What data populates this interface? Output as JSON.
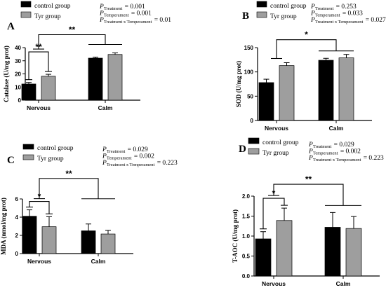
{
  "colors": {
    "control": "#000000",
    "tyr": "#9e9e9e",
    "axis": "#000000"
  },
  "chart_data": [
    {
      "type": "bar",
      "panel_label": "A",
      "categories": [
        "Nervous",
        "Calm"
      ],
      "ylabel": "Catalase (U/mg prot)",
      "ylim": [
        0,
        40
      ],
      "yticks": [
        0,
        10,
        20,
        30,
        40
      ],
      "series": [
        {
          "name": "control group",
          "values": [
            12.3,
            32.0
          ],
          "errors": [
            1.2,
            0.8
          ]
        },
        {
          "name": "Tyr group",
          "values": [
            18.2,
            34.8
          ],
          "errors": [
            1.5,
            1.2
          ]
        }
      ],
      "stats": [
        {
          "label": "Treatment",
          "value": "= 0.001"
        },
        {
          "label": "Temperament",
          "value": "= 0.001"
        },
        {
          "label": "Treatment x Temperament",
          "value": "= 0.01"
        }
      ],
      "brackets": [
        {
          "kind": "within",
          "category": 0,
          "text": "**"
        },
        {
          "kind": "between",
          "text": "**"
        }
      ]
    },
    {
      "type": "bar",
      "panel_label": "B",
      "categories": [
        "Nervous",
        "Calm"
      ],
      "ylabel": "SOD (U/mg prot)",
      "ylim": [
        0,
        150
      ],
      "yticks": [
        0,
        50,
        100,
        150
      ],
      "series": [
        {
          "name": "control group",
          "values": [
            78,
            124
          ],
          "errors": [
            7,
            4
          ]
        },
        {
          "name": "Tyr group",
          "values": [
            113,
            129
          ],
          "errors": [
            6,
            7
          ]
        }
      ],
      "stats": [
        {
          "label": "Treatment",
          "value": "= 0.253"
        },
        {
          "label": "Temperament",
          "value": "= 0.033"
        },
        {
          "label": "Treatment x Temperament",
          "value": "= 0.027"
        }
      ],
      "brackets": [
        {
          "kind": "between",
          "text": "*"
        }
      ]
    },
    {
      "type": "bar",
      "panel_label": "C",
      "categories": [
        "Nervous",
        "Calm"
      ],
      "ylabel": "MDA (nmol/mg prot)",
      "ylim": [
        0,
        6
      ],
      "yticks": [
        0,
        2,
        4,
        6
      ],
      "series": [
        {
          "name": "control group",
          "values": [
            4.1,
            2.5
          ],
          "errors": [
            0.7,
            0.75
          ]
        },
        {
          "name": "Tyr group",
          "values": [
            2.95,
            2.15
          ],
          "errors": [
            1.1,
            0.4
          ]
        }
      ],
      "stats": [
        {
          "label": "Treatment",
          "value": "= 0.029"
        },
        {
          "label": "Temperament",
          "value": "= 0.002"
        },
        {
          "label": "Treatment x Temperament",
          "value": "= 0.223"
        }
      ],
      "brackets": [
        {
          "kind": "within",
          "category": 0,
          "text": "*"
        },
        {
          "kind": "between",
          "text": "**"
        }
      ]
    },
    {
      "type": "bar",
      "panel_label": "D",
      "categories": [
        "Nervous",
        "Calm"
      ],
      "ylabel": "T-AOC (U/mg prot)",
      "ylim": [
        0,
        2.0
      ],
      "yticks": [
        0.0,
        0.5,
        1.0,
        1.5,
        2.0
      ],
      "tick_decimals": 1,
      "series": [
        {
          "name": "control group",
          "values": [
            0.93,
            1.22
          ],
          "errors": [
            0.18,
            0.37
          ]
        },
        {
          "name": "Tyr group",
          "values": [
            1.39,
            1.19
          ],
          "errors": [
            0.31,
            0.3
          ]
        }
      ],
      "stats": [
        {
          "label": "Treatment",
          "value": "= 0.029"
        },
        {
          "label": "Temperament",
          "value": "= 0.002"
        },
        {
          "label": "Treatment x Temperament",
          "value": "= 0.223"
        }
      ],
      "brackets": [
        {
          "kind": "within",
          "category": 0,
          "text": "*"
        },
        {
          "kind": "between",
          "text": "**"
        }
      ]
    }
  ]
}
